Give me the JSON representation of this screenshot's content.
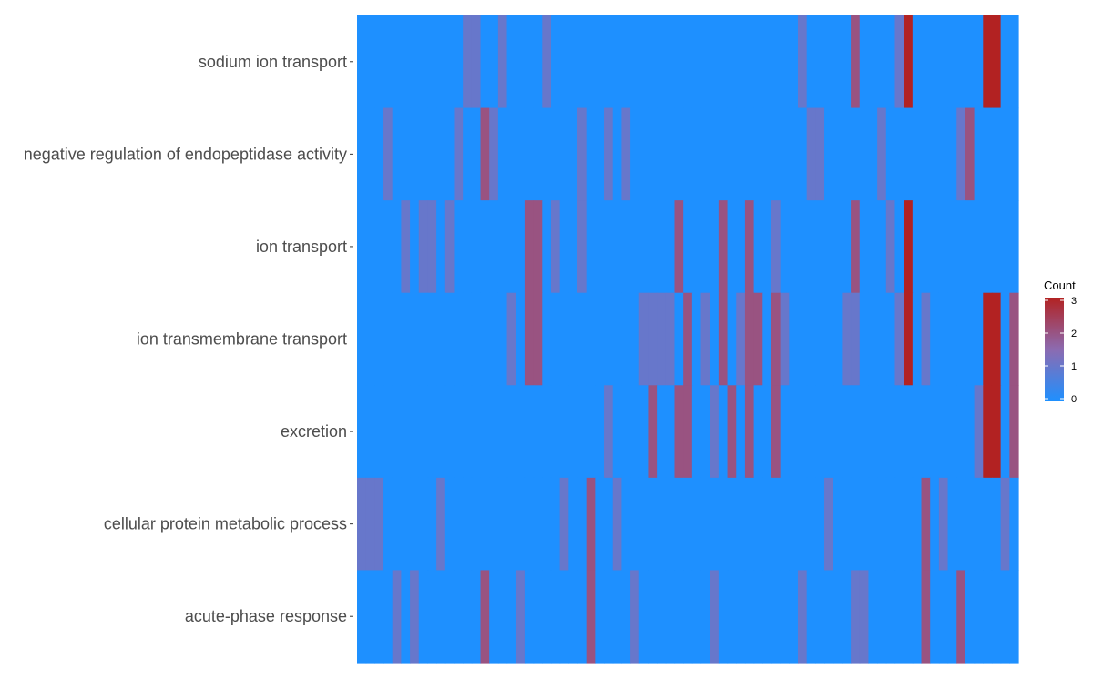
{
  "chart_data": {
    "type": "heatmap",
    "rows": [
      "sodium ion transport",
      "negative regulation of endopeptidase activity",
      "ion transport",
      "ion transmembrane transport",
      "excretion",
      "cellular protein metabolic process",
      "acute-phase response"
    ],
    "n_columns": 75,
    "cells": [
      [
        0,
        0,
        0,
        0,
        0,
        0,
        0,
        0,
        0,
        0,
        0,
        0,
        1,
        1,
        0,
        0,
        1,
        0,
        0,
        0,
        0,
        1,
        0,
        0,
        0,
        0,
        0,
        0,
        0,
        0,
        0,
        0,
        0,
        0,
        0,
        0,
        0,
        0,
        0,
        0,
        0,
        0,
        0,
        0,
        0,
        0,
        0,
        0,
        0,
        0,
        1,
        0,
        0,
        0,
        0,
        0,
        2,
        0,
        0,
        0,
        0,
        1,
        3,
        0,
        0,
        0,
        0,
        0,
        0,
        0,
        0,
        3,
        3,
        0,
        0
      ],
      [
        0,
        0,
        0,
        1,
        0,
        0,
        0,
        0,
        0,
        0,
        0,
        1,
        0,
        0,
        2,
        1,
        0,
        0,
        0,
        0,
        0,
        0,
        0,
        0,
        0,
        1,
        0,
        0,
        1,
        0,
        1,
        0,
        0,
        0,
        0,
        0,
        0,
        0,
        0,
        0,
        0,
        0,
        0,
        0,
        0,
        0,
        0,
        0,
        0,
        0,
        0,
        1,
        1,
        0,
        0,
        0,
        0,
        0,
        0,
        1,
        0,
        0,
        0,
        0,
        0,
        0,
        0,
        0,
        1,
        2,
        0,
        0,
        0,
        0,
        0
      ],
      [
        0,
        0,
        0,
        0,
        0,
        1,
        0,
        1,
        1,
        0,
        1,
        0,
        0,
        0,
        0,
        0,
        0,
        0,
        0,
        2,
        2,
        0,
        1,
        0,
        0,
        1,
        0,
        0,
        0,
        0,
        0,
        0,
        0,
        0,
        0,
        0,
        2,
        0,
        0,
        0,
        0,
        2,
        0,
        0,
        2,
        0,
        0,
        1,
        0,
        0,
        0,
        0,
        0,
        0,
        0,
        0,
        2,
        0,
        0,
        0,
        1,
        0,
        3,
        0,
        0,
        0,
        0,
        0,
        0,
        0,
        0,
        0,
        0,
        0,
        0
      ],
      [
        0,
        0,
        0,
        0,
        0,
        0,
        0,
        0,
        0,
        0,
        0,
        0,
        0,
        0,
        0,
        0,
        0,
        1,
        0,
        2,
        2,
        0,
        0,
        0,
        0,
        0,
        0,
        0,
        0,
        0,
        0,
        0,
        1,
        1,
        1,
        1,
        0,
        2,
        0,
        1,
        0,
        2,
        0,
        1,
        2,
        2,
        0,
        2,
        1,
        0,
        0,
        0,
        0,
        0,
        0,
        1,
        1,
        0,
        0,
        0,
        0,
        1,
        3,
        0,
        1,
        0,
        0,
        0,
        0,
        0,
        0,
        3,
        3,
        0,
        2
      ],
      [
        0,
        0,
        0,
        0,
        0,
        0,
        0,
        0,
        0,
        0,
        0,
        0,
        0,
        0,
        0,
        0,
        0,
        0,
        0,
        0,
        0,
        0,
        0,
        0,
        0,
        0,
        0,
        0,
        1,
        0,
        0,
        0,
        0,
        2,
        0,
        0,
        2,
        2,
        0,
        0,
        1,
        0,
        2,
        0,
        2,
        0,
        0,
        2,
        0,
        0,
        0,
        0,
        0,
        0,
        0,
        0,
        0,
        0,
        0,
        0,
        0,
        0,
        0,
        0,
        0,
        0,
        0,
        0,
        0,
        0,
        1,
        3,
        3,
        0,
        2
      ],
      [
        1,
        1,
        1,
        0,
        0,
        0,
        0,
        0,
        0,
        1,
        0,
        0,
        0,
        0,
        0,
        0,
        0,
        0,
        0,
        0,
        0,
        0,
        0,
        1,
        0,
        0,
        2,
        0,
        0,
        1,
        0,
        0,
        0,
        0,
        0,
        0,
        0,
        0,
        0,
        0,
        0,
        0,
        0,
        0,
        0,
        0,
        0,
        0,
        0,
        0,
        0,
        0,
        0,
        1,
        0,
        0,
        0,
        0,
        0,
        0,
        0,
        0,
        0,
        0,
        2,
        0,
        1,
        0,
        0,
        0,
        0,
        0,
        0,
        1,
        0
      ],
      [
        0,
        0,
        0,
        0,
        1,
        0,
        1,
        0,
        0,
        0,
        0,
        0,
        0,
        0,
        2,
        0,
        0,
        0,
        1,
        0,
        0,
        0,
        0,
        0,
        0,
        0,
        2,
        0,
        0,
        0,
        0,
        1,
        0,
        0,
        0,
        0,
        0,
        0,
        0,
        0,
        1,
        0,
        0,
        0,
        0,
        0,
        0,
        0,
        0,
        0,
        1,
        0,
        0,
        0,
        0,
        0,
        1,
        1,
        0,
        0,
        0,
        0,
        0,
        0,
        2,
        0,
        0,
        0,
        2,
        0,
        0,
        0,
        0,
        0,
        0
      ]
    ],
    "scale": {
      "min": 0,
      "max": 3,
      "low_color": "#1e90ff",
      "mid_color": "#8c6bb1",
      "high_color": "#b22222"
    },
    "legend": {
      "title": "Count",
      "ticks": [
        "0",
        "1",
        "2",
        "3"
      ],
      "placement": "right"
    },
    "grid": false
  }
}
